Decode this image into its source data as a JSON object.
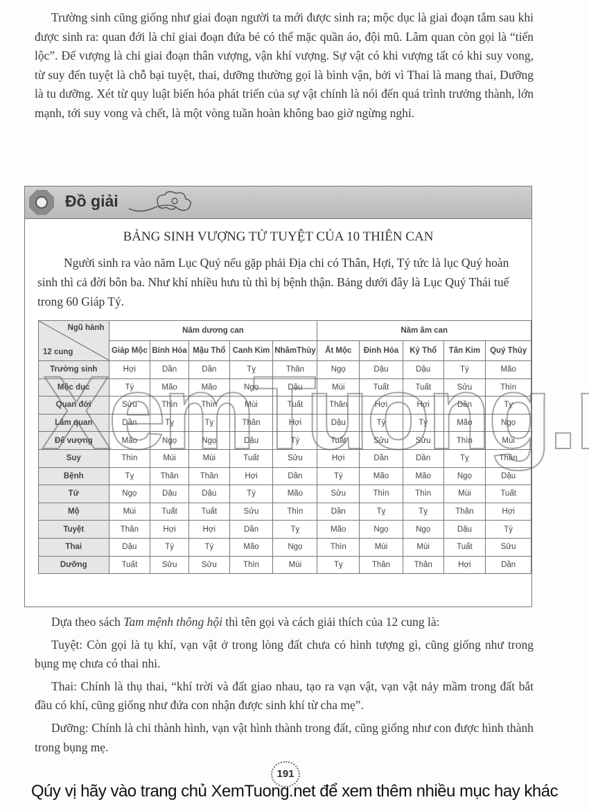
{
  "top_paragraph": "Trường sinh cũng giống như giai đoạn người ta mới được sinh ra; mộc dục là giai đoạn tắm sau khi được sinh ra: quan đới là chỉ giai đoạn đứa bé có thể mặc quần áo, đội mũ. Lâm quan còn gọi là “tiến lộc”. Đế vượng là chỉ giai đoạn thân vượng, vận khí vượng. Sự vật có khi vượng tất có khi suy vong, từ suy đến tuyệt là chỗ bại tuyệt, thai, dưỡng thường gọi là bình vận, bởi vì Thai là mang thai, Dưỡng là tu dưỡng. Xét từ quy luật biến hóa phát triển của sự vật chính là nói đến quá trình trưởng thành, lớn mạnh, tới suy vong và chết, là một vòng tuần hoàn không bao giờ ngừng nghỉ.",
  "box": {
    "header": "Đồ giải",
    "table_title": "BẢNG SINH VƯỢNG TỬ TUYỆT CỦA 10 THIÊN CAN",
    "intro": "Người sinh ra vào năm Lục Quý nếu gặp phải Địa chi có Thân, Hợi, Tý tức là lục Quý hoàn sinh thì cả đời bôn ba. Như khí nhiều hưu tù thì bị bệnh thận. Bảng dưới đây là Lục Quý Thái tuế trong 60 Giáp Tý.",
    "table": {
      "corner_top": "Ngũ hành",
      "corner_bottom": "12 cung",
      "groups": [
        "Năm dương can",
        "Năm âm can"
      ],
      "columns": [
        "Giáp Mộc",
        "Bính Hỏa",
        "Mậu Thổ",
        "Canh Kim",
        "NhâmThủy",
        "Ất Mộc",
        "Đinh Hỏa",
        "Kỷ Thổ",
        "Tân Kim",
        "Quý Thủy"
      ],
      "rows": [
        {
          "label": "Trường sinh",
          "cells": [
            "Hợi",
            "Dần",
            "Dần",
            "Tỵ",
            "Thân",
            "Ngọ",
            "Dậu",
            "Dậu",
            "Tý",
            "Mão"
          ]
        },
        {
          "label": "Mộc dục",
          "cells": [
            "Tý",
            "Mão",
            "Mão",
            "Ngọ",
            "Dậu",
            "Mùi",
            "Tuất",
            "Tuất",
            "Sửu",
            "Thìn"
          ]
        },
        {
          "label": "Quan đới",
          "cells": [
            "Sửu",
            "Thìn",
            "Thìn",
            "Mùi",
            "Tuất",
            "Thân",
            "Hợi",
            "Hợi",
            "Dần",
            "Tỵ"
          ]
        },
        {
          "label": "Lâm quan",
          "cells": [
            "Dần",
            "Tỵ",
            "Tỵ",
            "Thân",
            "Hợi",
            "Dậu",
            "Tý",
            "Tý",
            "Mão",
            "Ngọ"
          ]
        },
        {
          "label": "Đế vượng",
          "cells": [
            "Mão",
            "Ngọ",
            "Ngọ",
            "Dậu",
            "Tý",
            "Tuất",
            "Sửu",
            "Sửu",
            "Thìn",
            "Mùi"
          ]
        },
        {
          "label": "Suy",
          "cells": [
            "Thìn",
            "Mùi",
            "Mùi",
            "Tuất",
            "Sửu",
            "Hợi",
            "Dần",
            "Dần",
            "Tỵ",
            "Thân"
          ]
        },
        {
          "label": "Bệnh",
          "cells": [
            "Tỵ",
            "Thân",
            "Thân",
            "Hợi",
            "Dần",
            "Tý",
            "Mão",
            "Mão",
            "Ngọ",
            "Dậu"
          ]
        },
        {
          "label": "Tử",
          "cells": [
            "Ngọ",
            "Dậu",
            "Dậu",
            "Tý",
            "Mão",
            "Sửu",
            "Thìn",
            "Thìn",
            "Mùi",
            "Tuất"
          ]
        },
        {
          "label": "Mộ",
          "cells": [
            "Mùi",
            "Tuất",
            "Tuất",
            "Sửu",
            "Thìn",
            "Dần",
            "Tỵ",
            "Tỵ",
            "Thân",
            "Hợi"
          ]
        },
        {
          "label": "Tuyệt",
          "cells": [
            "Thân",
            "Hợi",
            "Hợi",
            "Dần",
            "Tỵ",
            "Mão",
            "Ngọ",
            "Ngọ",
            "Dậu",
            "Tý"
          ]
        },
        {
          "label": "Thai",
          "cells": [
            "Dậu",
            "Tý",
            "Tý",
            "Mão",
            "Ngọ",
            "Thìn",
            "Mùi",
            "Mùi",
            "Tuất",
            "Sửu"
          ]
        },
        {
          "label": "Dưỡng",
          "cells": [
            "Tuất",
            "Sửu",
            "Sửu",
            "Thìn",
            "Mùi",
            "Tỵ",
            "Thân",
            "Thân",
            "Hợi",
            "Dần"
          ]
        }
      ]
    }
  },
  "watermark": "XemTuong.net",
  "after": {
    "p1_pre": "Dựa theo sách ",
    "p1_book": "Tam mệnh thông hội",
    "p1_post": " thì tên gọi và cách giải thích của 12 cung là:",
    "p2": "Tuyệt: Còn gọi là tụ khí, vạn vật ở trong lòng đất chưa có hình tượng gì, cũng giống như trong bụng mẹ chưa có thai nhi.",
    "p3": "Thai: Chính là thụ thai, “khí trời và đất giao nhau, tạo ra vạn vật, vạn vật nảy mầm trong đất bắt đầu có khí, cũng giống như đứa con nhận được sinh khí từ cha mẹ”.",
    "p4": "Dưỡng: Chính là chỉ thành hình, vạn vật hình thành trong đất, cũng giống như con được hình thành trong bụng mẹ."
  },
  "page_number": "191",
  "footer": "Qúy vị hãy vào trang chủ XemTuong.net để xem thêm nhiều mục hay khác"
}
